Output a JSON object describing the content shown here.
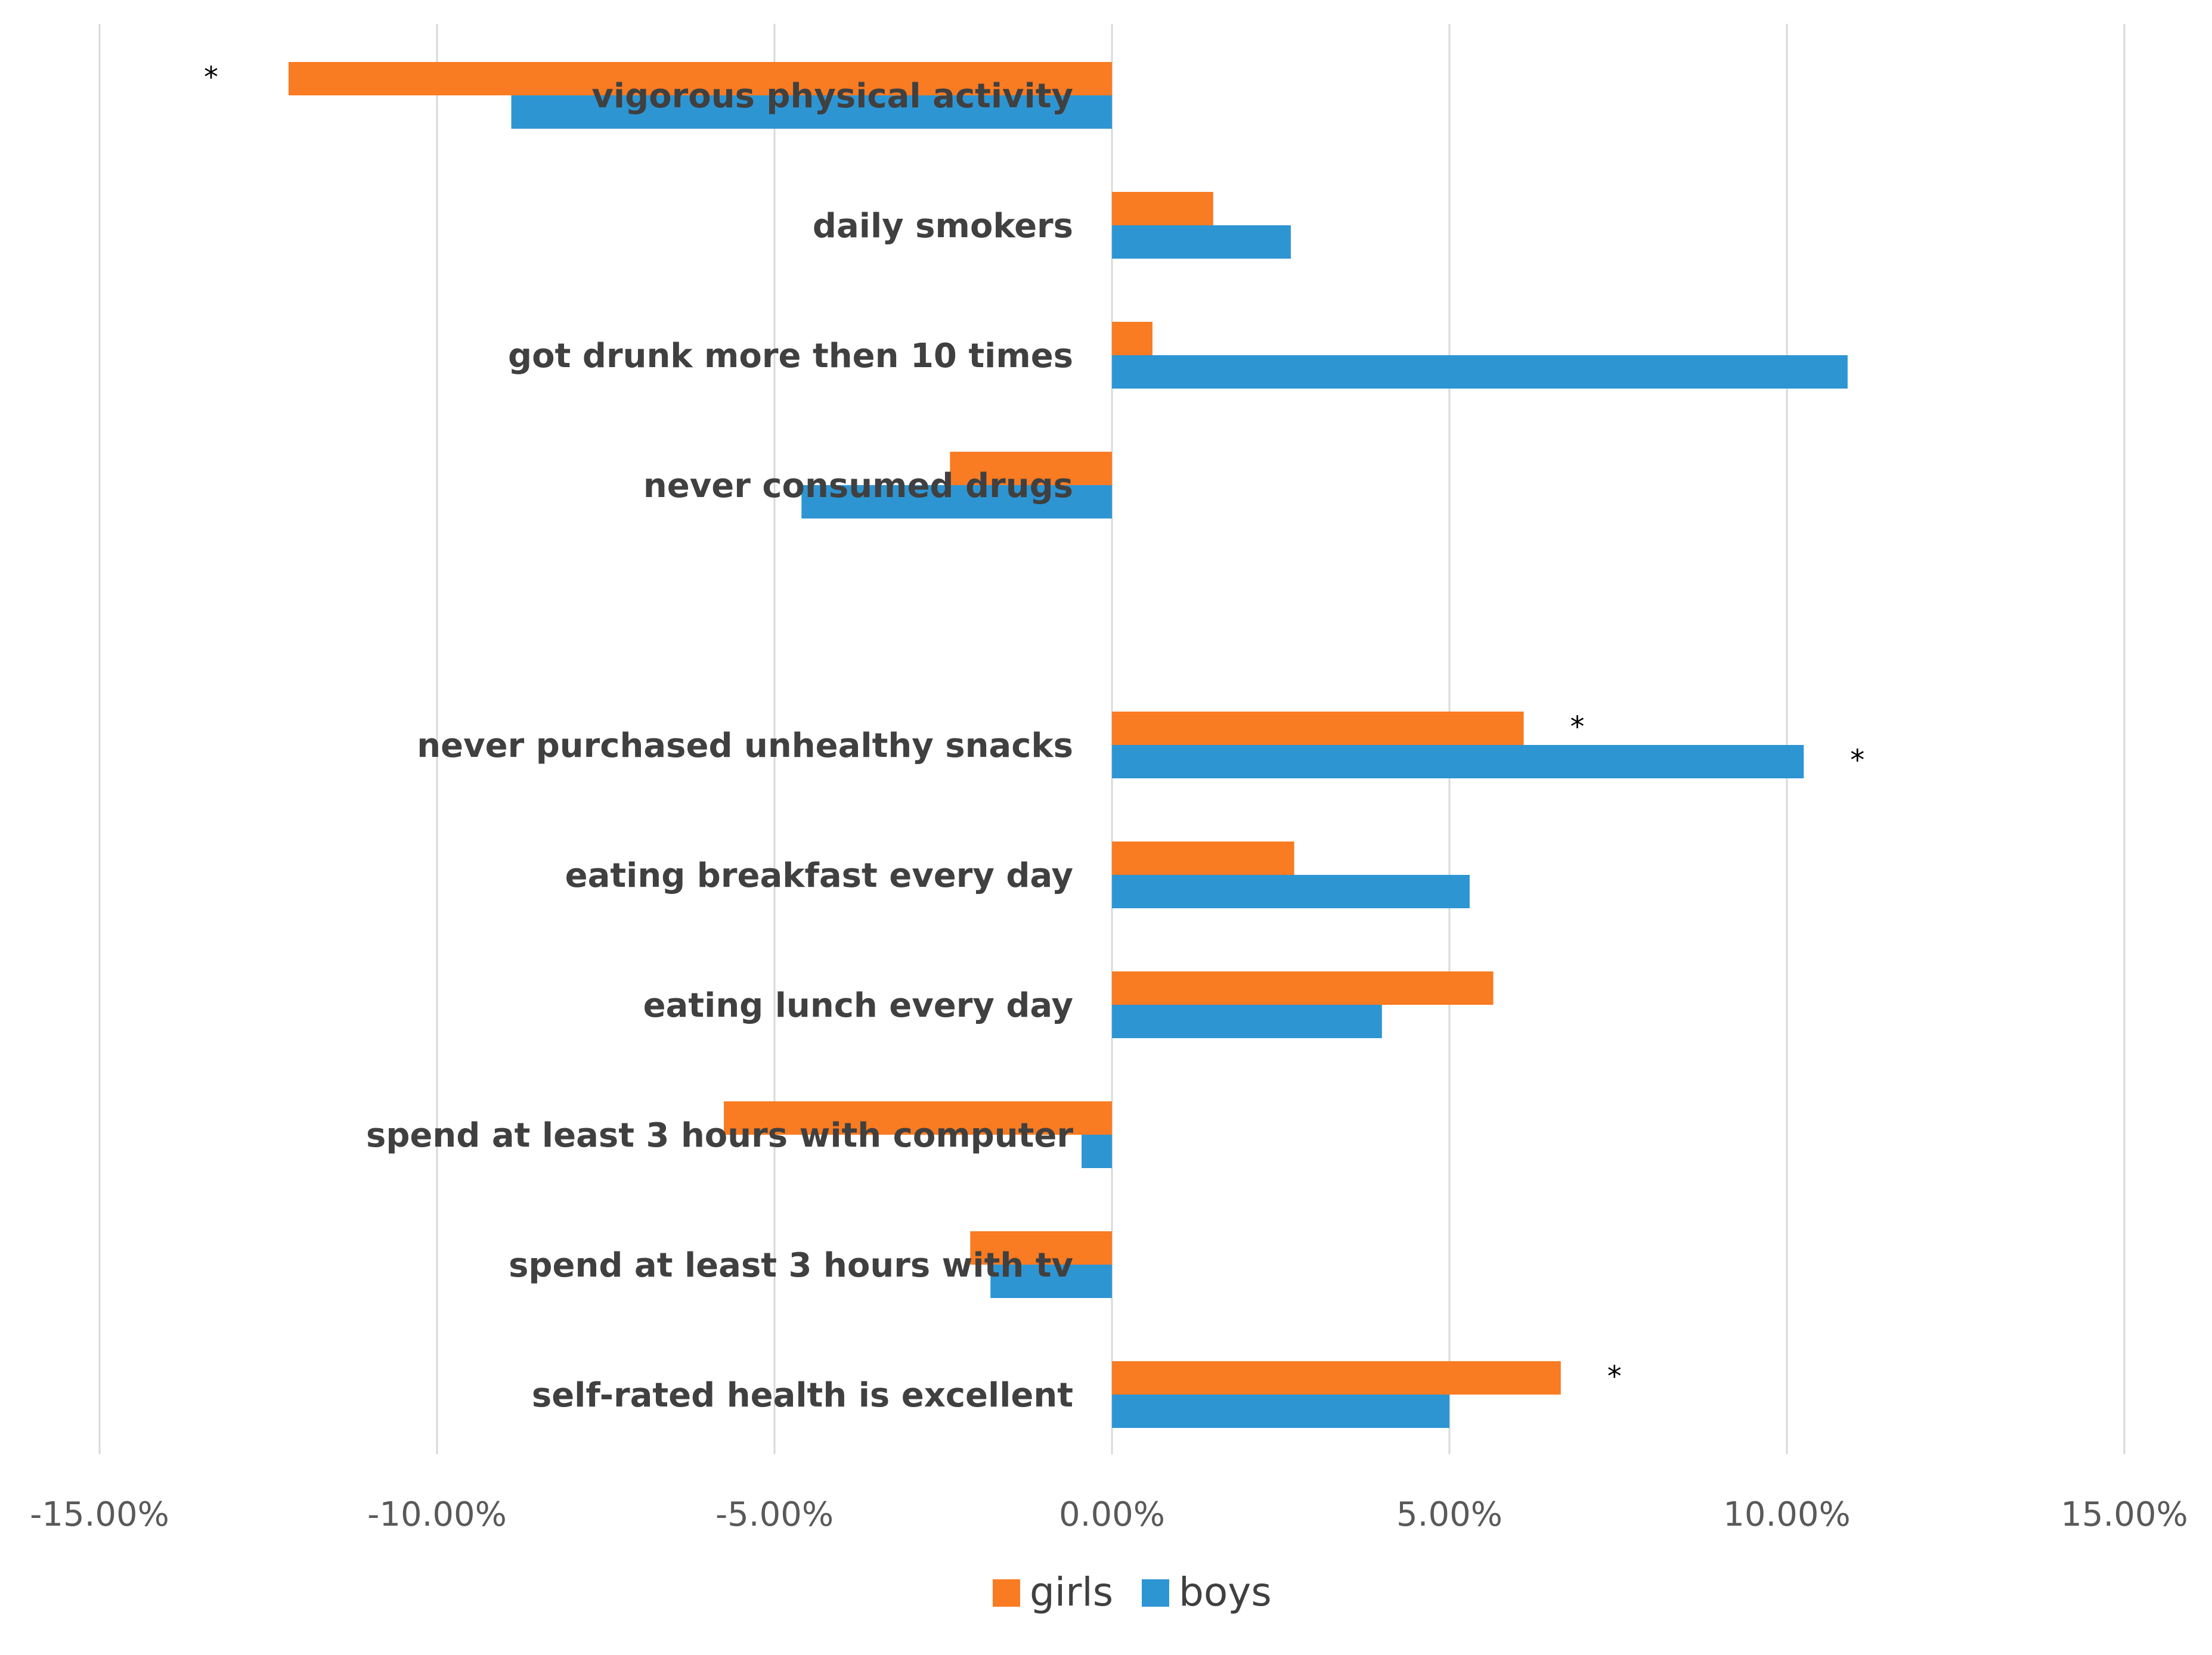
{
  "chart_data": {
    "type": "bar",
    "orientation": "horizontal",
    "categories": [
      "vigorous physical  activity",
      "daily smokers",
      "got drunk more then 10 times",
      "never consumed drugs",
      "never purchased unhealthy snacks",
      "eating breakfast every day",
      "eating lunch every day",
      "spend at least 3 hours with computer",
      "spend at least 3 hours with tv",
      "self-rated health is excellent"
    ],
    "series": [
      {
        "name": "girls",
        "color": "#f97b22",
        "values": [
          -12.2,
          1.5,
          0.6,
          -2.4,
          6.1,
          2.7,
          5.65,
          -5.75,
          -2.1,
          6.65
        ],
        "significant": [
          true,
          false,
          false,
          false,
          true,
          false,
          false,
          false,
          false,
          true
        ]
      },
      {
        "name": "boys",
        "color": "#2e95d3",
        "values": [
          -8.9,
          2.65,
          10.9,
          -4.6,
          10.25,
          5.3,
          4.0,
          -0.45,
          -1.8,
          5.0
        ],
        "significant": [
          false,
          false,
          false,
          false,
          true,
          false,
          false,
          false,
          false,
          false
        ]
      }
    ],
    "xlim": [
      -15,
      15
    ],
    "xticks": [
      -15,
      -10,
      -5,
      0,
      5,
      10,
      15
    ],
    "xtick_labels": [
      "-15.00%",
      "-10.00%",
      "-5.00%",
      "0.00%",
      "5.00%",
      "10.00%",
      "15.00%"
    ],
    "significance_marker": "*",
    "grid": true,
    "legend": "bottom"
  }
}
